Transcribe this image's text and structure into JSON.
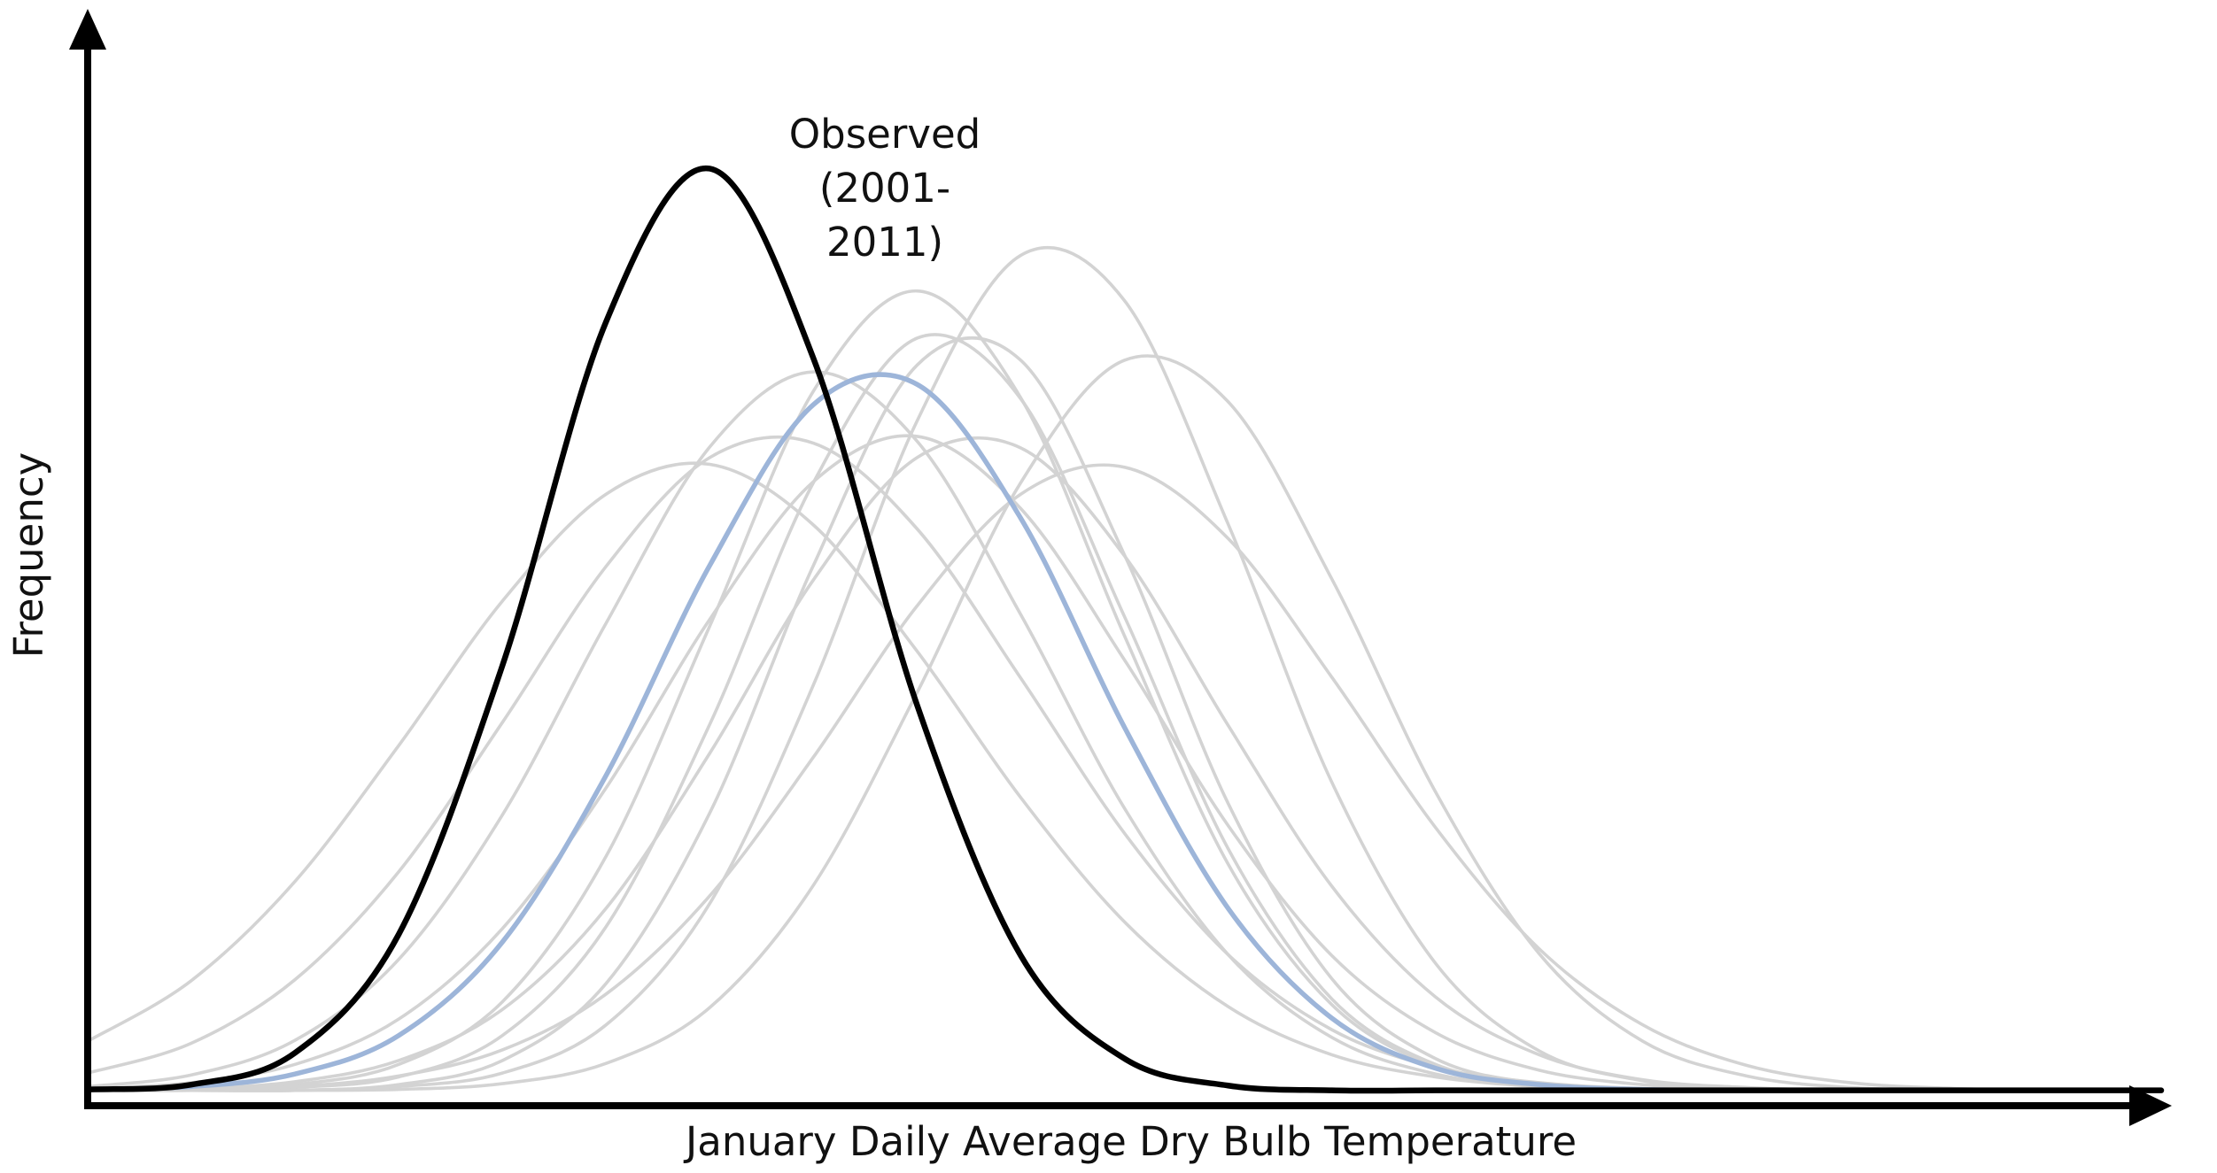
{
  "chart_data": {
    "type": "line",
    "xlabel": "January Daily Average Dry Bulb Temperature",
    "ylabel": "Frequency",
    "annotation": [
      "Observed",
      "(2001-",
      "2011)"
    ],
    "xlim": [
      0,
      100
    ],
    "ylim": [
      0,
      100
    ],
    "x": [
      0,
      5,
      10,
      15,
      20,
      25,
      30,
      35,
      40,
      45,
      50,
      55,
      60,
      65,
      70,
      75,
      80,
      85,
      90,
      95,
      100
    ],
    "series": [
      {
        "color": "#d3d3d3",
        "values": [
          6.6,
          12.9,
          23.2,
          37.3,
          52.3,
          63.4,
          66.5,
          60.2,
          47.1,
          31.9,
          19.0,
          10.2,
          5.2,
          2.9,
          1.9,
          1.6,
          1.5,
          1.5,
          1.5,
          1.5,
          1.5
        ]
      },
      {
        "color": "#d3d3d3",
        "values": [
          3.3,
          6.4,
          13.0,
          24.2,
          39.7,
          55.9,
          67.2,
          68.7,
          59.8,
          44.3,
          28.2,
          15.6,
          7.8,
          3.9,
          2.3,
          1.7,
          1.5,
          1.5,
          1.5,
          1.5,
          1.5
        ]
      },
      {
        "color": "#d3d3d3",
        "values": [
          1.9,
          3.1,
          6.7,
          15.1,
          30.1,
          50.0,
          68.3,
          76.1,
          68.9,
          50.9,
          30.8,
          15.6,
          7.0,
          3.2,
          1.9,
          1.6,
          1.5,
          1.5,
          1.5,
          1.5,
          1.5
        ]
      },
      {
        "color": "#d3d3d3",
        "values": [
          1.5,
          1.6,
          2.1,
          4.2,
          10.7,
          25.8,
          49.7,
          74.1,
          84.5,
          73.4,
          48.7,
          25.0,
          10.4,
          4.0,
          2.0,
          1.6,
          1.5,
          1.5,
          1.5,
          1.5,
          1.5
        ]
      },
      {
        "color": "#d3d3d3",
        "values": [
          1.5,
          1.5,
          1.8,
          2.9,
          7.2,
          18.5,
          39.5,
          64.6,
          79.6,
          73.3,
          50.7,
          26.6,
          11.0,
          4.2,
          2.1,
          1.6,
          1.5,
          1.5,
          1.5,
          1.5,
          1.5
        ]
      },
      {
        "color": "#d3d3d3",
        "values": [
          1.5,
          1.5,
          1.5,
          2.1,
          4.6,
          12.6,
          30.3,
          56.0,
          76.8,
          77.3,
          57.1,
          31.3,
          13.1,
          4.8,
          2.2,
          1.6,
          1.5,
          1.5,
          1.5,
          1.5,
          1.5
        ]
      },
      {
        "color": "#d3d3d3",
        "values": [
          1.7,
          2.3,
          4.2,
          8.9,
          18.3,
          32.9,
          50.4,
          64.7,
          69.4,
          61.9,
          46.2,
          29.0,
          15.5,
          7.5,
          3.6,
          2.1,
          1.7,
          1.5,
          1.5,
          1.5,
          1.5
        ]
      },
      {
        "color": "#d3d3d3",
        "values": [
          1.5,
          1.7,
          2.4,
          4.6,
          9.9,
          20.4,
          36.5,
          54.5,
          67.2,
          68.2,
          57.0,
          39.4,
          22.7,
          11.2,
          5.2,
          2.6,
          1.8,
          1.5,
          1.5,
          1.5,
          1.5
        ]
      },
      {
        "color": "#d3d3d3",
        "values": [
          1.5,
          1.5,
          1.5,
          1.9,
          3.3,
          8.3,
          20.9,
          43.6,
          71.0,
          88.2,
          83.5,
          60.3,
          33.5,
          14.7,
          5.6,
          2.5,
          1.7,
          1.5,
          1.5,
          1.5,
          1.5
        ]
      },
      {
        "color": "#d3d3d3",
        "values": [
          1.5,
          1.5,
          1.5,
          1.6,
          2.2,
          4.3,
          10.1,
          22.8,
          42.8,
          64.6,
          77.3,
          73.0,
          54.6,
          32.5,
          15.7,
          6.6,
          3.0,
          1.8,
          1.5,
          1.5,
          1.5
        ]
      },
      {
        "color": "#d3d3d3",
        "values": [
          1.5,
          1.6,
          1.9,
          3.0,
          5.7,
          11.5,
          21.7,
          36.1,
          51.8,
          63.4,
          66.2,
          58.8,
          44.4,
          28.8,
          16.2,
          8.3,
          4.1,
          2.3,
          1.7,
          1.5,
          1.5
        ]
      },
      {
        "color": "#9db5d9",
        "values": [
          1.6,
          1.9,
          3.2,
          7.2,
          16.9,
          34.2,
          56.0,
          72.7,
          74.8,
          60.9,
          39.2,
          20.4,
          9.0,
          3.8,
          2.1,
          1.6,
          1.5,
          1.5,
          1.5,
          1.5,
          1.5
        ]
      },
      {
        "color": "#000000",
        "values": [
          1.6,
          2.1,
          5.4,
          17.7,
          45.6,
          81.3,
          97.2,
          77.5,
          41.5,
          15.5,
          4.8,
          2.0,
          1.5,
          1.5,
          1.5,
          1.5,
          1.5,
          1.5,
          1.5,
          1.5,
          1.5
        ]
      }
    ]
  }
}
